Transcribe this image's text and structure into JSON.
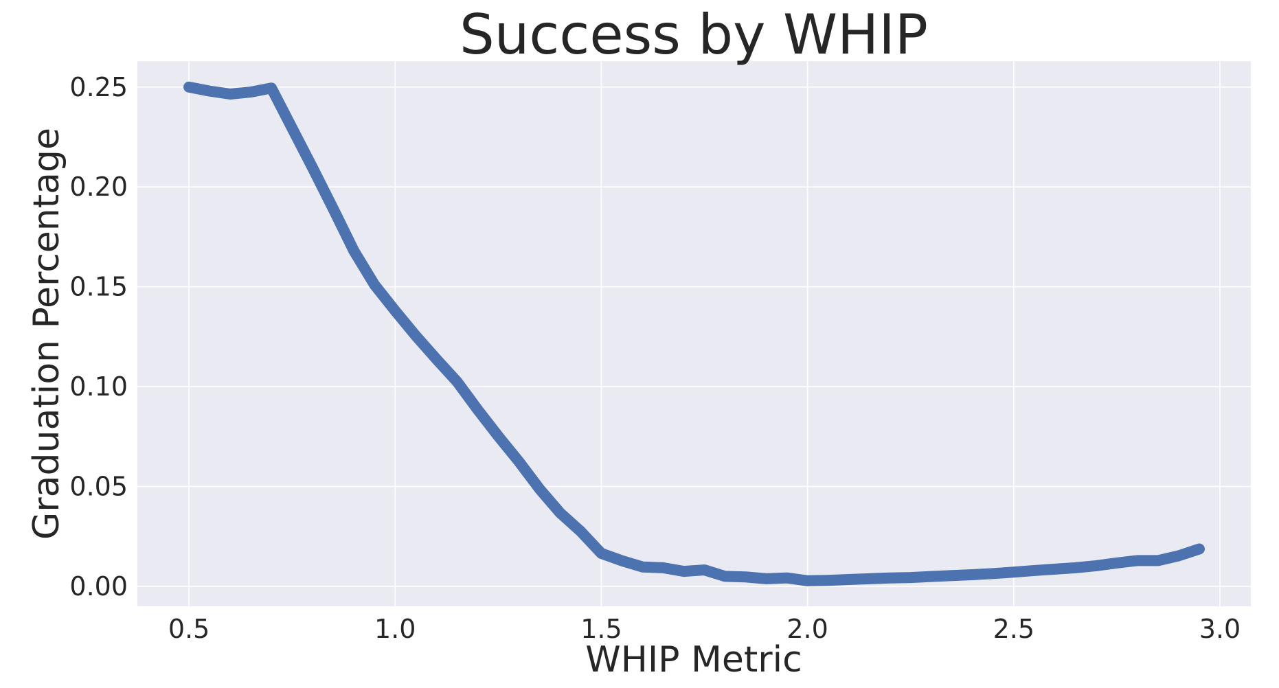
{
  "chart_data": {
    "type": "line",
    "title": "Success by WHIP",
    "xlabel": "WHIP Metric",
    "ylabel": "Graduation Percentage",
    "xlim": [
      0.375,
      3.075
    ],
    "ylim": [
      -0.01,
      0.263
    ],
    "xticks": [
      0.5,
      1.0,
      1.5,
      2.0,
      2.5,
      3.0
    ],
    "xtick_labels": [
      "0.5",
      "1.0",
      "1.5",
      "2.0",
      "2.5",
      "3.0"
    ],
    "yticks": [
      0.0,
      0.05,
      0.1,
      0.15,
      0.2,
      0.25
    ],
    "ytick_labels": [
      "0.00",
      "0.05",
      "0.10",
      "0.15",
      "0.20",
      "0.25"
    ],
    "grid": true,
    "legend": false,
    "series": [
      {
        "color": "#4c72b0",
        "x": [
          0.5,
          0.55,
          0.6,
          0.65,
          0.7,
          0.75,
          0.8,
          0.85,
          0.9,
          0.95,
          1.0,
          1.05,
          1.1,
          1.15,
          1.2,
          1.25,
          1.3,
          1.35,
          1.4,
          1.45,
          1.5,
          1.55,
          1.6,
          1.65,
          1.7,
          1.75,
          1.8,
          1.85,
          1.9,
          1.95,
          2.0,
          2.05,
          2.1,
          2.15,
          2.2,
          2.25,
          2.3,
          2.35,
          2.4,
          2.45,
          2.5,
          2.55,
          2.6,
          2.65,
          2.7,
          2.75,
          2.8,
          2.85,
          2.9,
          2.95
        ],
        "y": [
          0.25,
          0.248,
          0.2465,
          0.2475,
          0.2495,
          0.2295,
          0.2095,
          0.189,
          0.168,
          0.151,
          0.138,
          0.1255,
          0.1138,
          0.1025,
          0.0885,
          0.0752,
          0.0625,
          0.0488,
          0.0368,
          0.0275,
          0.0165,
          0.0128,
          0.0097,
          0.0093,
          0.0075,
          0.0082,
          0.005,
          0.0047,
          0.0038,
          0.0042,
          0.0028,
          0.003,
          0.0034,
          0.0038,
          0.0042,
          0.0044,
          0.0049,
          0.0054,
          0.0058,
          0.0064,
          0.0071,
          0.0079,
          0.0086,
          0.0093,
          0.0103,
          0.0117,
          0.0129,
          0.0129,
          0.0153,
          0.0187
        ]
      }
    ]
  }
}
